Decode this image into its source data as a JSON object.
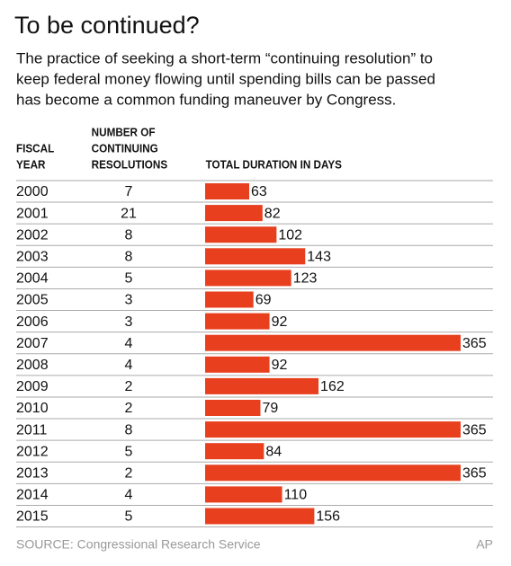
{
  "chart_data": {
    "type": "bar",
    "title": "To be continued?",
    "subtitle": [
      "The practice of seeking a short-term “continuing resolution” to",
      "keep federal money flowing until spending bills can be passed",
      "has become a common funding maneuver by Congress."
    ],
    "headers": {
      "year": [
        "FISCAL",
        "YEAR"
      ],
      "count": [
        "NUMBER OF",
        "CONTINUING",
        "RESOLUTIONS"
      ],
      "duration": "TOTAL DURATION IN DAYS"
    },
    "categories": [
      "2000",
      "2001",
      "2002",
      "2003",
      "2004",
      "2005",
      "2006",
      "2007",
      "2008",
      "2009",
      "2010",
      "2011",
      "2012",
      "2013",
      "2014",
      "2015"
    ],
    "counts": [
      7,
      21,
      8,
      8,
      5,
      3,
      3,
      4,
      4,
      2,
      2,
      8,
      5,
      2,
      4,
      5
    ],
    "values": [
      63,
      82,
      102,
      143,
      123,
      69,
      92,
      365,
      92,
      162,
      79,
      365,
      84,
      365,
      110,
      156
    ],
    "color": "#e8401f",
    "source": "SOURCE: Congressional Research Service",
    "credit": "AP"
  }
}
